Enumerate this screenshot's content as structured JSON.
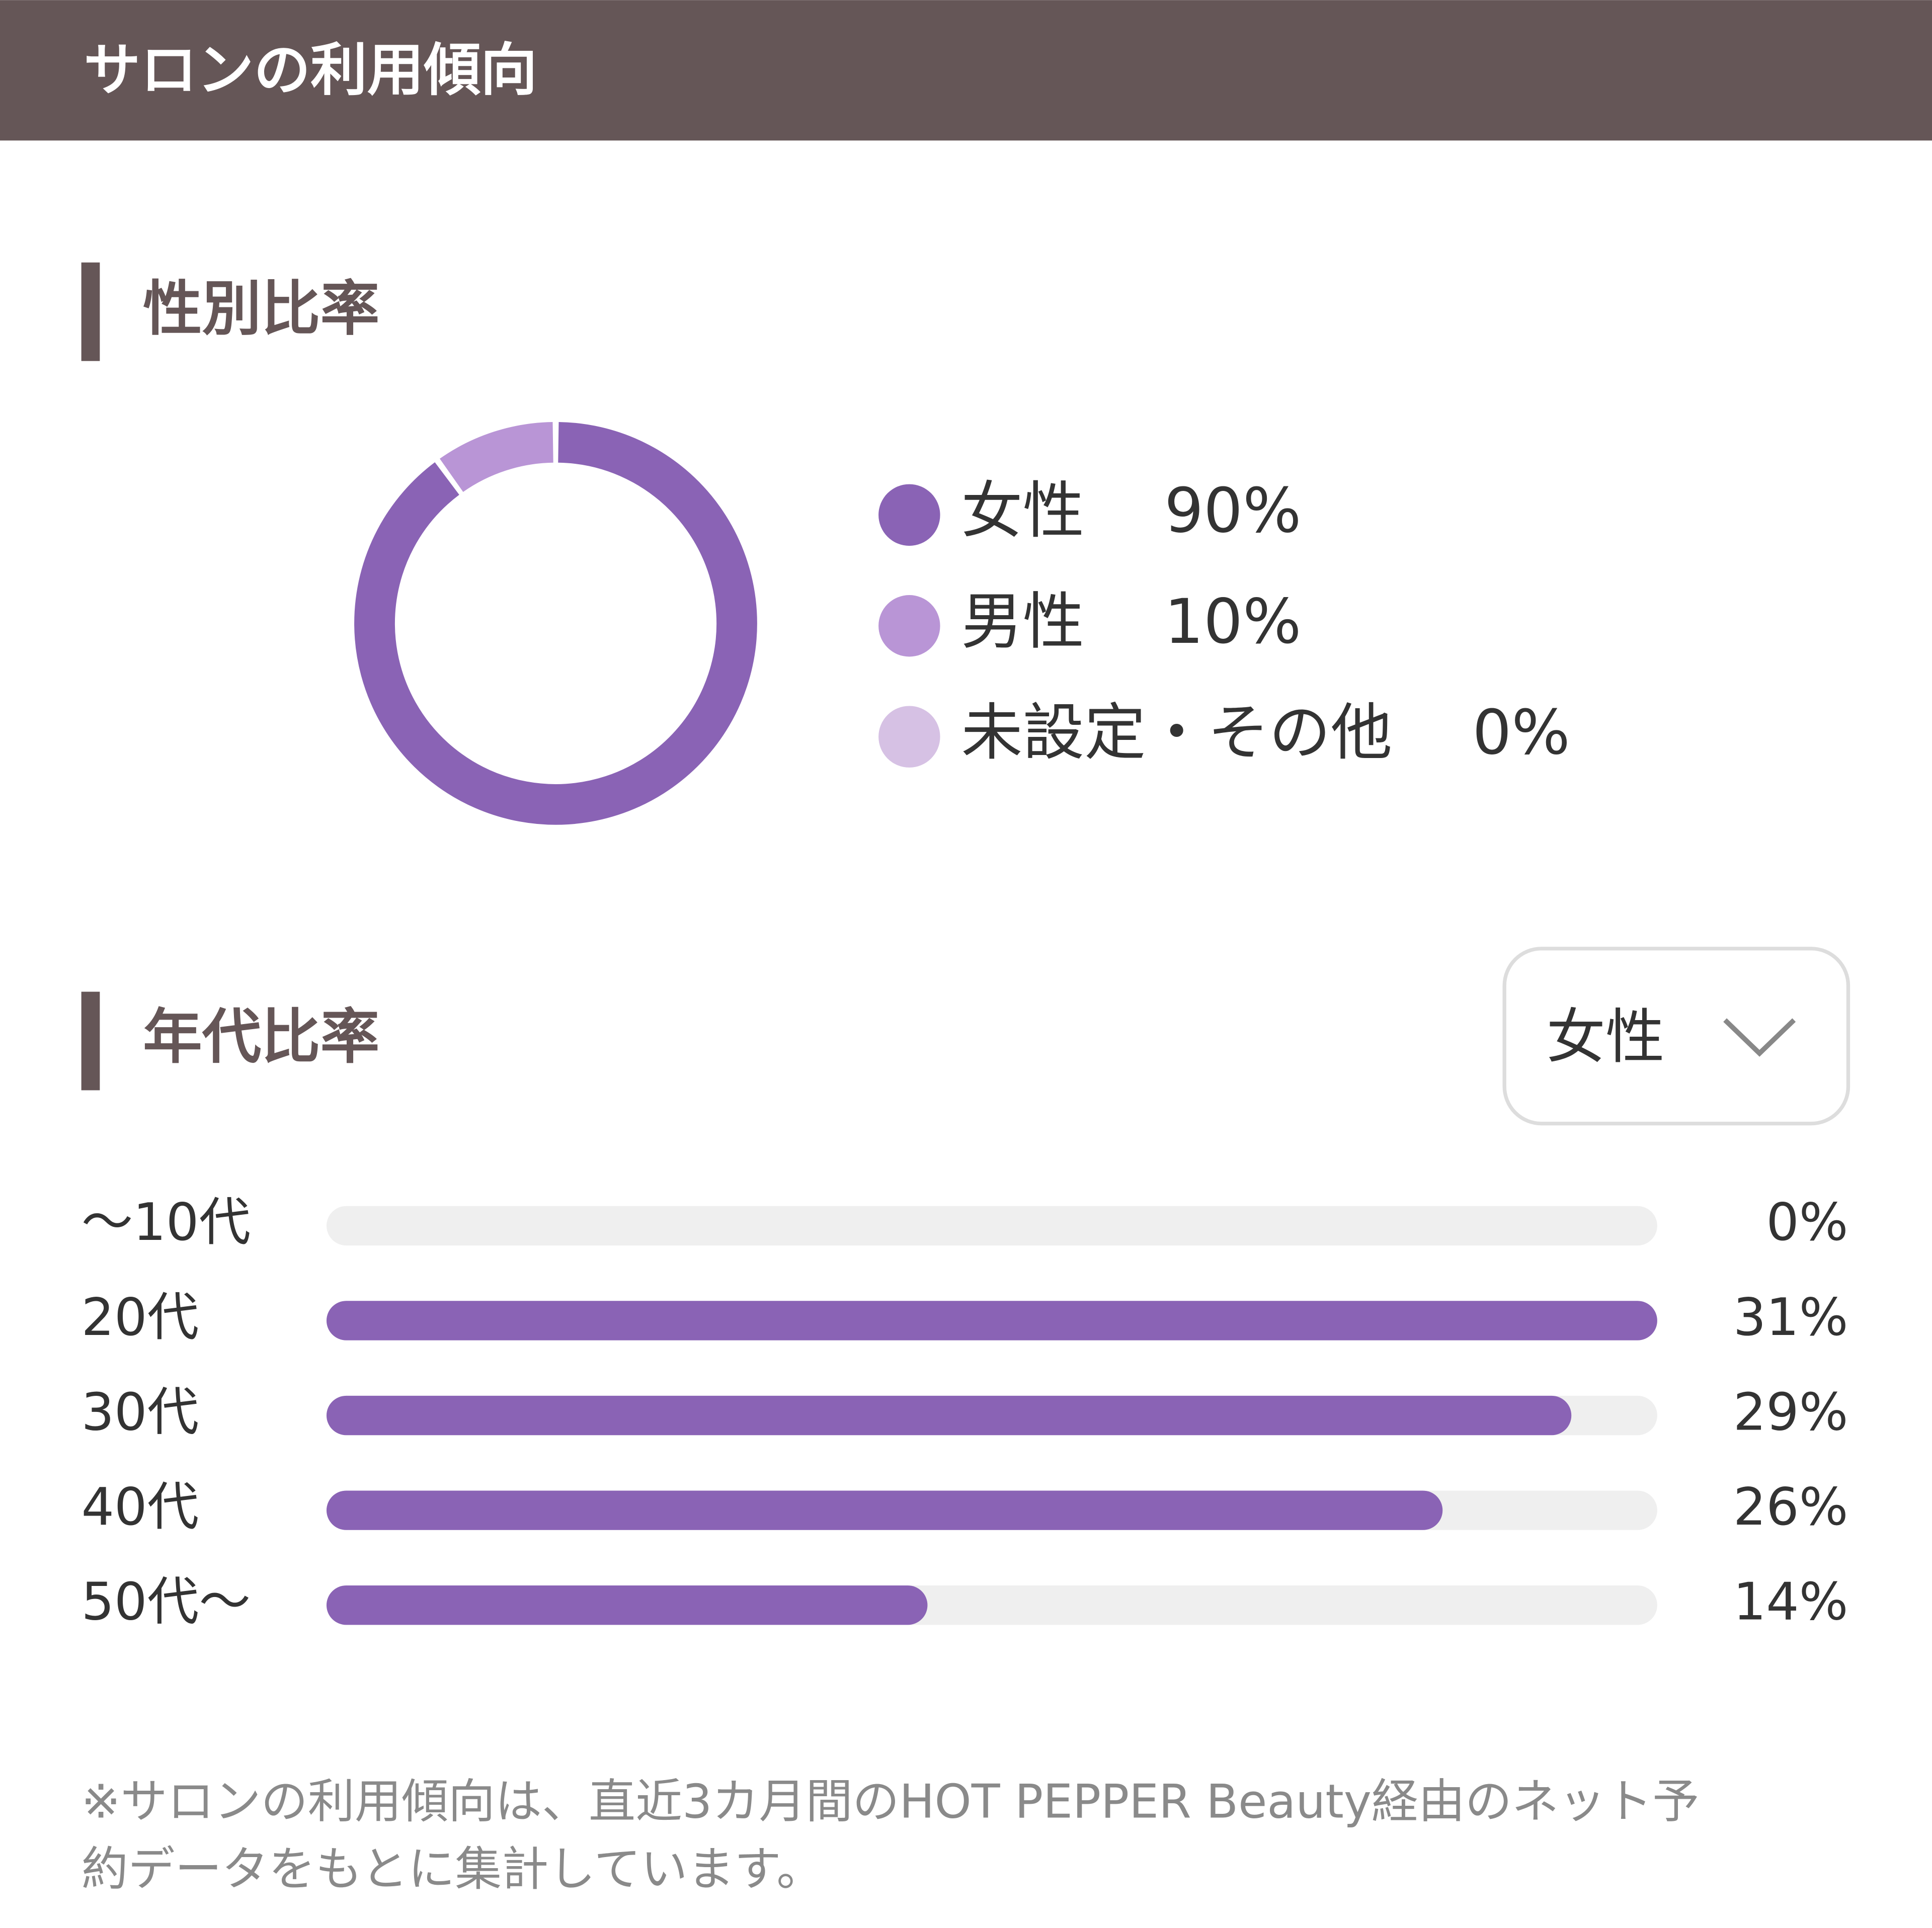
{
  "header": {
    "title": "サロンの利用傾向"
  },
  "gender_chart": {
    "type": "donut",
    "title": "性別比率",
    "categories": [
      "女性",
      "男性",
      "未設定・その他"
    ],
    "values": [
      90,
      10,
      0
    ],
    "value_labels": [
      "90%",
      "10%",
      "0%"
    ],
    "colors": [
      "#8a63b5",
      "#b995d6",
      "#d6c1e4"
    ]
  },
  "age_chart": {
    "type": "bar",
    "title": "年代比率",
    "filter": "女性",
    "categories": [
      "～10代",
      "20代",
      "30代",
      "40代",
      "50代～"
    ],
    "values": [
      0,
      31,
      29,
      26,
      14
    ],
    "value_labels": [
      "0%",
      "31%",
      "29%",
      "26%",
      "14%"
    ],
    "color": "#8a63b5",
    "xlim": [
      0,
      31
    ]
  },
  "footnote": {
    "lines": [
      "※サロンの利用傾向は、直近3カ月間のHOT PEPPER Beauty経由のネット予",
      "約データをもとに集計しています。"
    ]
  }
}
